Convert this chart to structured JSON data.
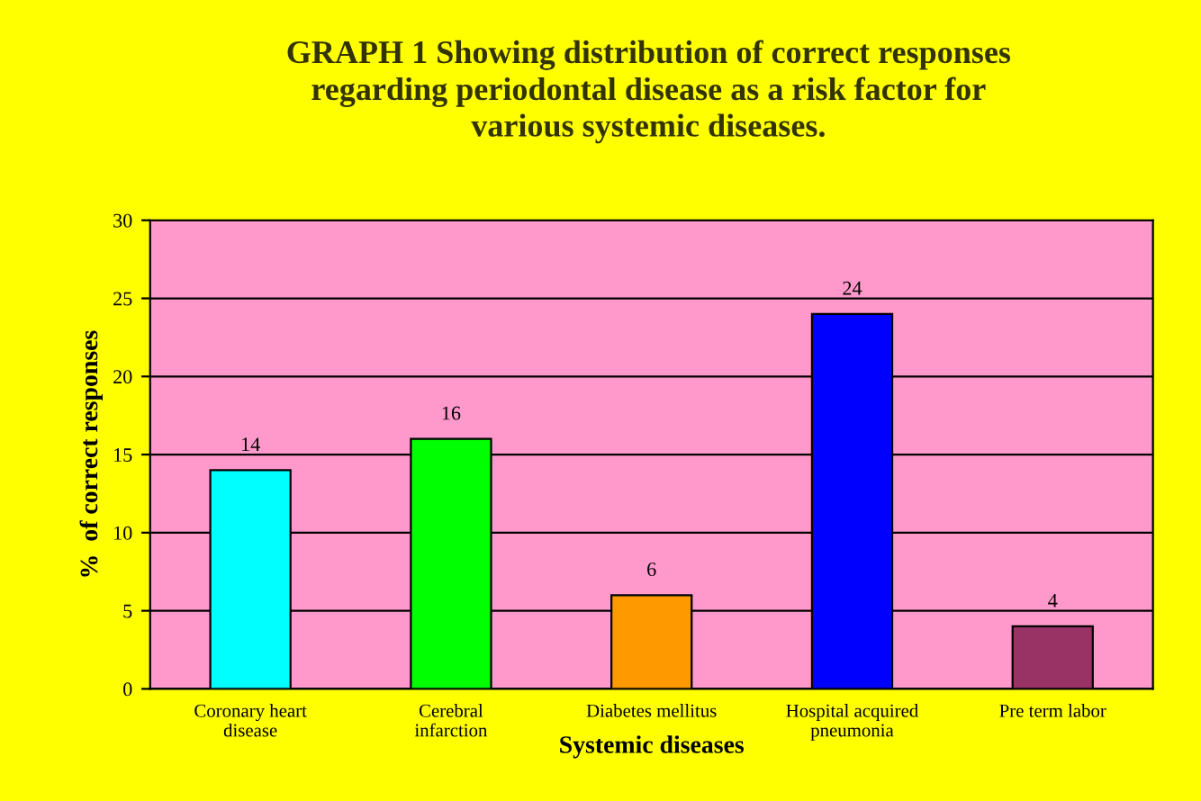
{
  "chart_data": {
    "type": "bar",
    "title": "GRAPH 1 Showing distribution of correct responses\nregarding periodontal disease as a risk factor for\nvarious systemic diseases.",
    "categories": [
      "Coronary heart\ndisease",
      "Cerebral\ninfarction",
      "Diabetes mellitus",
      "Hospital acquired\npneumonia",
      "Pre term labor"
    ],
    "values": [
      14,
      16,
      6,
      24,
      4
    ],
    "colors": [
      "#00ffff",
      "#00ff00",
      "#ff9900",
      "#0000ff",
      "#993366"
    ],
    "xlabel": "Systemic diseases",
    "ylabel": "%  of correct responses",
    "ylim": [
      0,
      30
    ],
    "yticks": [
      0,
      5,
      10,
      15,
      20,
      25,
      30
    ],
    "grid": "y",
    "data_labels": true
  }
}
